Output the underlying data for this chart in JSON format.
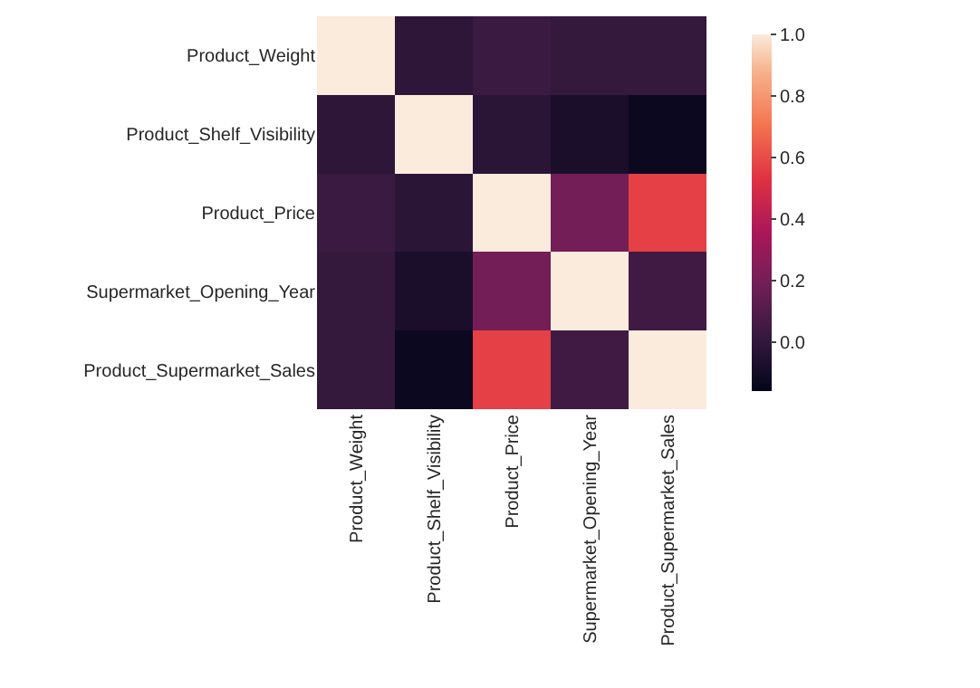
{
  "chart_data": {
    "type": "heatmap",
    "categories": [
      "Product_Weight",
      "Product_Shelf_Visibility",
      "Product_Price",
      "Supermarket_Opening_Year",
      "Product_Supermarket_Sales"
    ],
    "y_categories": [
      "Product_Weight",
      "Product_Shelf_Visibility",
      "Product_Price",
      "Supermarket_Opening_Year",
      "Product_Supermarket_Sales"
    ],
    "cells": [
      [
        1.0,
        -0.01,
        0.03,
        0.01,
        0.01
      ],
      [
        -0.01,
        1.0,
        -0.02,
        -0.08,
        -0.13
      ],
      [
        0.03,
        -0.02,
        1.0,
        0.2,
        0.57
      ],
      [
        0.01,
        -0.08,
        0.2,
        1.0,
        0.05
      ],
      [
        0.01,
        -0.13,
        0.57,
        0.05,
        1.0
      ]
    ],
    "clim": [
      -0.16,
      1.0
    ],
    "cticks": [
      {
        "value": 0,
        "label": "0.0"
      },
      {
        "value": 0.2,
        "label": "0.2"
      },
      {
        "value": 0.4,
        "label": "0.4"
      },
      {
        "value": 0.6,
        "label": "0.6"
      },
      {
        "value": 0.8,
        "label": "0.8"
      },
      {
        "value": 1,
        "label": "1.0"
      }
    ]
  }
}
